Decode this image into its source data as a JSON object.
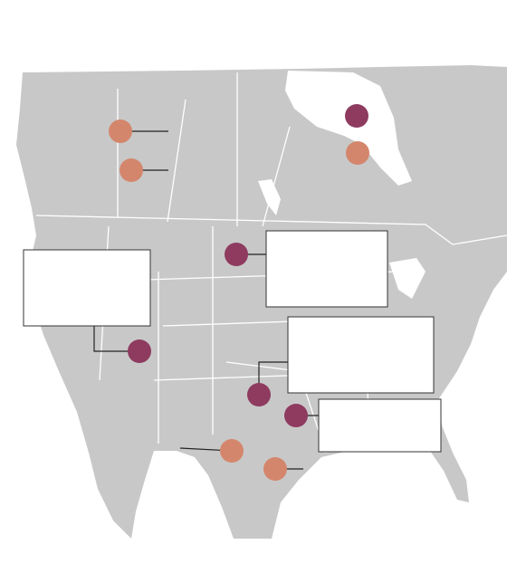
{
  "markers": [
    {
      "color": "#8e3b5f"
    },
    {
      "color": "#8e3b5f"
    },
    {
      "color": "#8e3b5f"
    },
    {
      "color": "#8e3b5f"
    },
    {
      "color": "#8e3b5f"
    },
    {
      "color": "#d4866c"
    },
    {
      "color": "#d4866c"
    },
    {
      "color": "#d4866c"
    },
    {
      "color": "#d4866c"
    },
    {
      "color": "#d4866c"
    }
  ]
}
